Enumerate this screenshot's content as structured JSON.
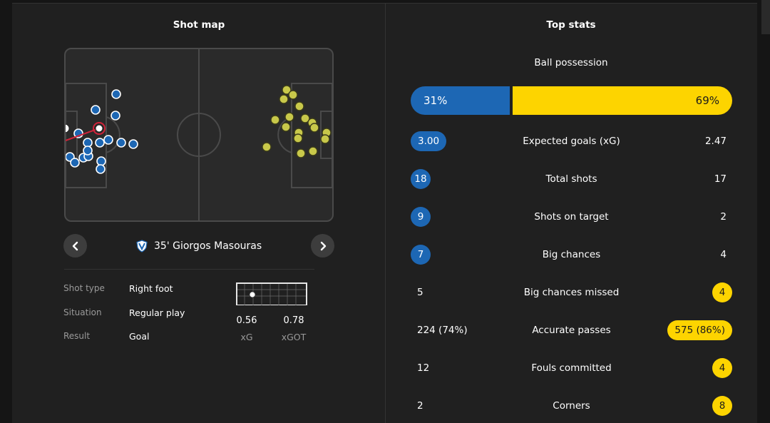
{
  "shot_map": {
    "title": "Shot map",
    "selected_shot": {
      "minute_player": "35' Giorgos Masouras",
      "shot_type_label": "Shot type",
      "shot_type": "Right foot",
      "situation_label": "Situation",
      "situation": "Regular play",
      "result_label": "Result",
      "result": "Goal",
      "xg": "0.56",
      "xg_label": "xG",
      "xgot": "0.78",
      "xgot_label": "xGOT"
    },
    "prev_icon": "chevron-left-icon",
    "next_icon": "chevron-right-icon",
    "team_badge": "shield-icon",
    "colors": {
      "home": "#1d67b4",
      "away": "#c8c84a",
      "goal": "#d0233a"
    }
  },
  "top_stats": {
    "title": "Top stats",
    "possession": {
      "label": "Ball possession",
      "home": "31%",
      "away": "69%",
      "home_pct": 31
    },
    "rows": [
      {
        "label": "Expected goals (xG)",
        "home": "3.00",
        "away": "2.47",
        "highlight": "home"
      },
      {
        "label": "Total shots",
        "home": "18",
        "away": "17",
        "highlight": "home"
      },
      {
        "label": "Shots on target",
        "home": "9",
        "away": "2",
        "highlight": "home"
      },
      {
        "label": "Big chances",
        "home": "7",
        "away": "4",
        "highlight": "home"
      },
      {
        "label": "Big chances missed",
        "home": "5",
        "away": "4",
        "highlight": "away"
      },
      {
        "label": "Accurate passes",
        "home": "224 (74%)",
        "away": "575 (86%)",
        "highlight": "away"
      },
      {
        "label": "Fouls committed",
        "home": "12",
        "away": "4",
        "highlight": "away"
      },
      {
        "label": "Corners",
        "home": "2",
        "away": "8",
        "highlight": "away"
      }
    ],
    "colors": {
      "home": "#1d67b4",
      "away": "#fdd400"
    }
  }
}
